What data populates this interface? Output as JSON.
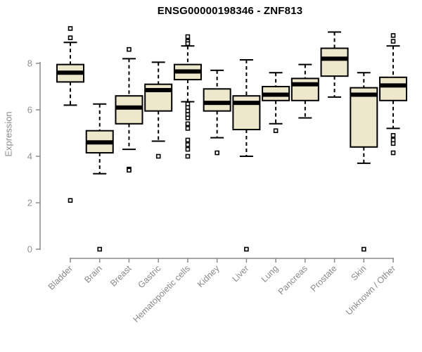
{
  "chart_data": {
    "type": "boxplot",
    "title": "ENSG00000198346 - ZNF813",
    "ylabel": "Expression",
    "xlabel": "",
    "yticks": [
      0,
      2,
      4,
      6,
      8
    ],
    "ylim": [
      -0.4,
      9.7
    ],
    "grid": false,
    "legend": "none",
    "categories": [
      "Bladder",
      "Brain",
      "Breast",
      "Gastric",
      "Hematopoietic cells",
      "Kidney",
      "Liver",
      "Lung",
      "Pancreas",
      "Prostate",
      "Skin",
      "Unknown / Other"
    ],
    "series": [
      {
        "name": "Bladder",
        "whisker_low": 6.2,
        "q1": 7.2,
        "median": 7.6,
        "q3": 7.95,
        "whisker_high": 8.9,
        "outliers": [
          9.5,
          9.1,
          2.1
        ]
      },
      {
        "name": "Brain",
        "whisker_low": 3.25,
        "q1": 4.15,
        "median": 4.6,
        "q3": 5.1,
        "whisker_high": 6.25,
        "outliers": [
          0
        ]
      },
      {
        "name": "Breast",
        "whisker_low": 4.3,
        "q1": 5.4,
        "median": 6.1,
        "q3": 6.6,
        "whisker_high": 8.2,
        "outliers": [
          8.6,
          3.45,
          3.4
        ]
      },
      {
        "name": "Gastric",
        "whisker_low": 4.65,
        "q1": 5.95,
        "median": 6.85,
        "q3": 7.1,
        "whisker_high": 8.05,
        "outliers": [
          4.0
        ]
      },
      {
        "name": "Hematopoietic cells",
        "whisker_low": 6.35,
        "q1": 7.3,
        "median": 7.65,
        "q3": 7.95,
        "whisker_high": 8.75,
        "outliers": [
          9.15,
          8.95,
          8.85,
          6.25,
          6.1,
          5.95,
          5.8,
          5.65,
          5.4,
          5.2,
          4.7,
          4.5,
          4.3,
          4.0
        ]
      },
      {
        "name": "Kidney",
        "whisker_low": 4.8,
        "q1": 5.95,
        "median": 6.3,
        "q3": 6.9,
        "whisker_high": 7.7,
        "outliers": [
          4.15
        ]
      },
      {
        "name": "Liver",
        "whisker_low": 4.0,
        "q1": 5.15,
        "median": 6.3,
        "q3": 6.6,
        "whisker_high": 8.15,
        "outliers": [
          0
        ]
      },
      {
        "name": "Lung",
        "whisker_low": 5.4,
        "q1": 6.4,
        "median": 6.65,
        "q3": 7.0,
        "whisker_high": 7.6,
        "outliers": [
          5.1
        ]
      },
      {
        "name": "Pancreas",
        "whisker_low": 5.65,
        "q1": 6.4,
        "median": 7.1,
        "q3": 7.35,
        "whisker_high": 7.95,
        "outliers": []
      },
      {
        "name": "Prostate",
        "whisker_low": 6.55,
        "q1": 7.45,
        "median": 8.2,
        "q3": 8.65,
        "whisker_high": 9.35,
        "outliers": []
      },
      {
        "name": "Skin",
        "whisker_low": 3.7,
        "q1": 4.4,
        "median": 6.65,
        "q3": 6.95,
        "whisker_high": 7.6,
        "outliers": [
          0
        ]
      },
      {
        "name": "Unknown / Other",
        "whisker_low": 5.2,
        "q1": 6.4,
        "median": 7.05,
        "q3": 7.4,
        "whisker_high": 8.75,
        "outliers": [
          9.2,
          8.95,
          4.9,
          4.7,
          4.55,
          4.15
        ]
      }
    ],
    "colors": {
      "box_fill": "#EDE7CC",
      "box_stroke": "#000000",
      "median": "#000000",
      "whisker": "#000000",
      "outlier_stroke": "#000000",
      "axis": "#8a8a8a",
      "tick_label": "#8f8f8f",
      "category_label": "#8a8a8a",
      "title": "#000000",
      "background": "#FFFFFF"
    }
  }
}
